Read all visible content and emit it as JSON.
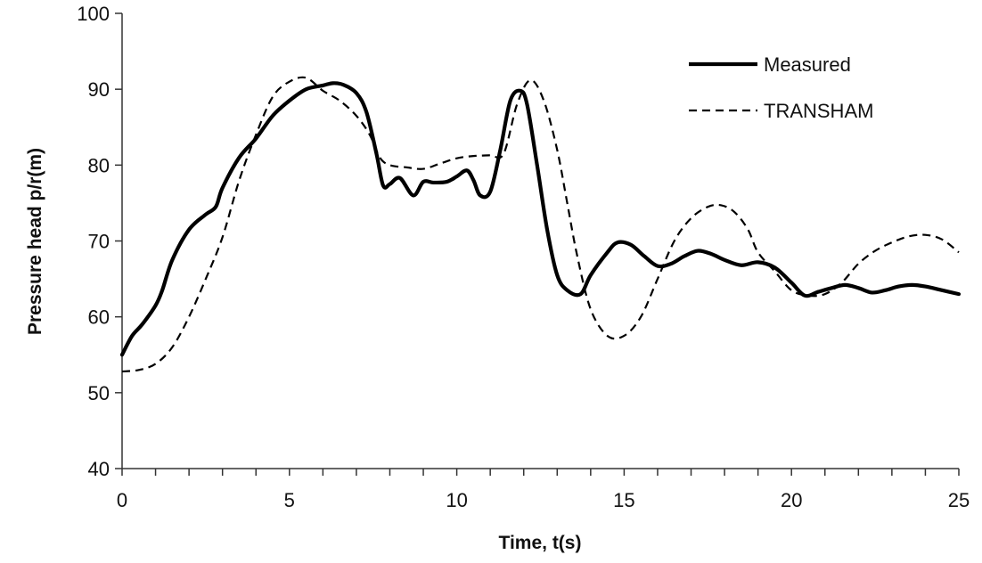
{
  "chart_data": {
    "type": "line",
    "title": "",
    "xlabel": "Time, t(s)",
    "ylabel": "Pressure head p/r(m)",
    "xlim": [
      0,
      25
    ],
    "ylim": [
      40,
      100
    ],
    "xticks": [
      0,
      5,
      10,
      15,
      20,
      25
    ],
    "yticks": [
      40,
      50,
      60,
      70,
      80,
      90,
      100
    ],
    "grid": false,
    "legend_position": "top-right",
    "series": [
      {
        "name": "Measured",
        "style": "solid",
        "color": "#000000",
        "x": [
          0,
          0.3,
          0.6,
          1.0,
          1.2,
          1.5,
          2.0,
          2.5,
          2.8,
          3.0,
          3.5,
          4.0,
          4.5,
          5.0,
          5.5,
          6.0,
          6.3,
          6.6,
          7.0,
          7.3,
          7.6,
          7.8,
          8.0,
          8.3,
          8.7,
          9.0,
          9.3,
          9.7,
          10.0,
          10.3,
          10.5,
          10.7,
          11.0,
          11.3,
          11.6,
          11.9,
          12.1,
          12.4,
          12.7,
          13.0,
          13.3,
          13.7,
          14.0,
          14.5,
          14.8,
          15.2,
          15.6,
          16.0,
          16.4,
          16.8,
          17.2,
          17.6,
          18.0,
          18.5,
          19.0,
          19.5,
          20.0,
          20.4,
          20.8,
          21.2,
          21.6,
          22.0,
          22.4,
          22.8,
          23.2,
          23.6,
          24.0,
          24.5,
          25.0
        ],
        "y": [
          55.0,
          57.5,
          59.0,
          61.5,
          63.5,
          67.5,
          71.5,
          73.5,
          74.5,
          77.0,
          81.0,
          83.5,
          86.5,
          88.5,
          90.0,
          90.5,
          90.8,
          90.6,
          89.5,
          87.0,
          81.5,
          77.3,
          77.5,
          78.3,
          76.0,
          77.8,
          77.7,
          77.8,
          78.5,
          79.3,
          78.0,
          76.0,
          76.5,
          82.0,
          88.5,
          89.8,
          88.0,
          80.0,
          71.5,
          65.5,
          63.5,
          63.0,
          65.5,
          68.5,
          69.8,
          69.5,
          68.0,
          66.7,
          67.0,
          68.0,
          68.7,
          68.3,
          67.5,
          66.8,
          67.2,
          66.5,
          64.5,
          62.8,
          63.3,
          63.8,
          64.2,
          63.8,
          63.2,
          63.5,
          64.0,
          64.2,
          64.0,
          63.5,
          63.0
        ]
      },
      {
        "name": "TRANSHAM",
        "style": "dashed",
        "color": "#000000",
        "x": [
          0,
          0.5,
          1.0,
          1.5,
          2.0,
          2.5,
          3.0,
          3.5,
          4.0,
          4.5,
          5.0,
          5.5,
          6.0,
          6.5,
          7.0,
          7.4,
          7.7,
          8.0,
          8.5,
          9.0,
          9.5,
          10.0,
          10.5,
          11.0,
          11.4,
          11.8,
          12.2,
          12.6,
          13.0,
          13.3,
          13.6,
          14.0,
          14.5,
          15.0,
          15.5,
          16.0,
          16.5,
          17.0,
          17.5,
          17.9,
          18.3,
          18.7,
          19.0,
          19.5,
          20.0,
          20.5,
          21.0,
          21.5,
          22.0,
          22.5,
          23.0,
          23.5,
          24.0,
          24.5,
          25.0
        ],
        "y": [
          52.8,
          53.0,
          53.8,
          56.0,
          60.0,
          65.0,
          70.5,
          78.0,
          84.0,
          89.0,
          91.0,
          91.5,
          89.8,
          88.5,
          86.5,
          84.0,
          81.0,
          80.0,
          79.7,
          79.5,
          80.2,
          80.9,
          81.2,
          81.3,
          81.5,
          88.0,
          91.2,
          88.5,
          82.0,
          75.0,
          68.0,
          61.0,
          57.5,
          57.5,
          60.0,
          65.0,
          70.0,
          73.0,
          74.5,
          74.7,
          73.8,
          71.5,
          68.5,
          66.0,
          63.5,
          62.8,
          63.0,
          64.5,
          67.0,
          68.7,
          69.8,
          70.6,
          70.8,
          70.2,
          68.5
        ]
      }
    ]
  }
}
